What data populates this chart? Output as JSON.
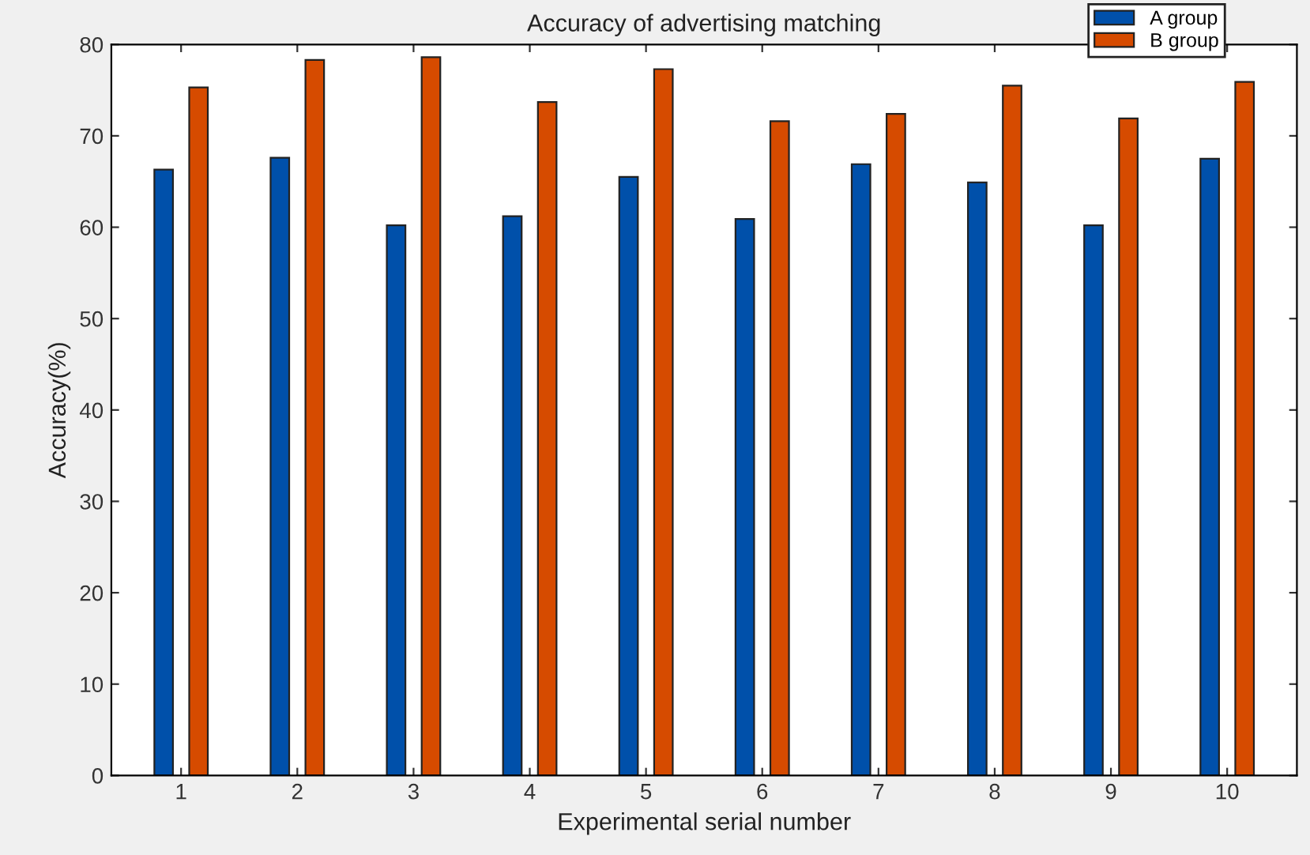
{
  "chart_data": {
    "type": "bar",
    "title": "Accuracy of advertising matching",
    "xlabel": "Experimental serial number",
    "ylabel": "Accuracy(%)",
    "categories": [
      "1",
      "2",
      "3",
      "4",
      "5",
      "6",
      "7",
      "8",
      "9",
      "10"
    ],
    "series": [
      {
        "name": "A group",
        "color": "#0050aa",
        "values": [
          66.3,
          67.6,
          60.2,
          61.2,
          65.5,
          60.9,
          66.9,
          64.9,
          60.2,
          67.5
        ]
      },
      {
        "name": "B group",
        "color": "#d64b00",
        "values": [
          75.3,
          78.3,
          78.6,
          73.7,
          77.3,
          71.6,
          72.4,
          75.5,
          71.9,
          75.9
        ]
      }
    ],
    "ylim": [
      0,
      80
    ],
    "yticks": [
      0,
      10,
      20,
      30,
      40,
      50,
      60,
      70,
      80
    ],
    "grid": false,
    "legend": "top right"
  }
}
